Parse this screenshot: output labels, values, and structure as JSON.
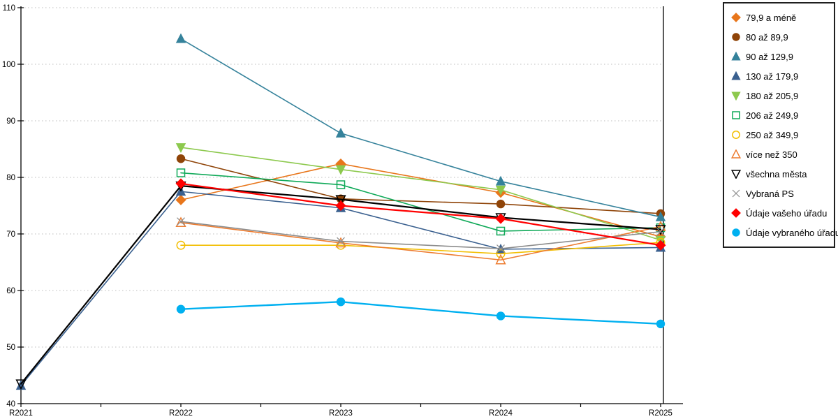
{
  "chart_data": {
    "type": "line",
    "title": "",
    "x_categories": [
      "R2021",
      "R2022",
      "R2023",
      "R2024",
      "R2025"
    ],
    "y_axis": {
      "min": 40,
      "max": 110,
      "step": 10,
      "tick_labels": [
        "40",
        "50",
        "60",
        "70",
        "80",
        "90",
        "100",
        "110"
      ]
    },
    "grid": {
      "horizontal": true,
      "style": "dotted",
      "color": "#bdbdbd"
    },
    "legend_position": "top-right",
    "series": [
      {
        "name": "79,9 a méně",
        "color": "#E8761B",
        "marker": "diamond",
        "style": "filled",
        "width": 1.6,
        "values": [
          null,
          76.0,
          82.4,
          77.3,
          69.5
        ]
      },
      {
        "name": "80 až 89,9",
        "color": "#8F4408",
        "marker": "circle",
        "style": "filled",
        "width": 1.6,
        "values": [
          null,
          83.3,
          76.2,
          75.3,
          73.6
        ]
      },
      {
        "name": "90 až 129,9",
        "color": "#35829B",
        "marker": "triangle-up",
        "style": "filled",
        "width": 1.6,
        "values": [
          null,
          104.5,
          87.8,
          79.3,
          73.0
        ]
      },
      {
        "name": "130 až 179,9",
        "color": "#3A608F",
        "marker": "triangle-up",
        "style": "filled",
        "width": 1.6,
        "values": [
          43.2,
          77.5,
          74.6,
          67.3,
          67.6
        ]
      },
      {
        "name": "180 až 205,9",
        "color": "#8DC94E",
        "marker": "triangle-down",
        "style": "filled",
        "width": 1.6,
        "values": [
          null,
          85.3,
          81.4,
          77.8,
          68.9
        ]
      },
      {
        "name": "206 až 249,9",
        "color": "#0FA958",
        "marker": "square",
        "style": "open",
        "width": 1.6,
        "values": [
          null,
          80.8,
          78.7,
          70.5,
          71.1
        ]
      },
      {
        "name": "250 až 349,9",
        "color": "#F2BE00",
        "marker": "circle",
        "style": "open",
        "width": 1.6,
        "values": [
          null,
          68.0,
          68.0,
          66.5,
          68.5
        ]
      },
      {
        "name": "více než 350",
        "color": "#ED7D31",
        "marker": "triangle-up",
        "style": "open",
        "width": 1.6,
        "values": [
          null,
          72.0,
          68.4,
          65.4,
          71.3
        ]
      },
      {
        "name": "všechna města",
        "color": "#000000",
        "marker": "triangle-down",
        "style": "open",
        "width": 2.2,
        "values": [
          43.5,
          78.5,
          76.1,
          72.9,
          70.8
        ]
      },
      {
        "name": "Vybraná PS",
        "color": "#8C8C8C",
        "marker": "x",
        "style": "open",
        "width": 1.6,
        "values": [
          null,
          72.2,
          68.7,
          67.4,
          70.4
        ]
      },
      {
        "name": "Údaje vašeho úřadu",
        "color": "#FF0000",
        "marker": "diamond",
        "style": "filled",
        "width": 2.2,
        "values": [
          null,
          78.9,
          75.0,
          72.7,
          68.0
        ]
      },
      {
        "name": "Údaje vybraného úřadu",
        "color": "#00B0F0",
        "marker": "circle",
        "style": "filled",
        "width": 2.4,
        "values": [
          null,
          56.7,
          58.0,
          55.5,
          54.1
        ]
      }
    ]
  }
}
